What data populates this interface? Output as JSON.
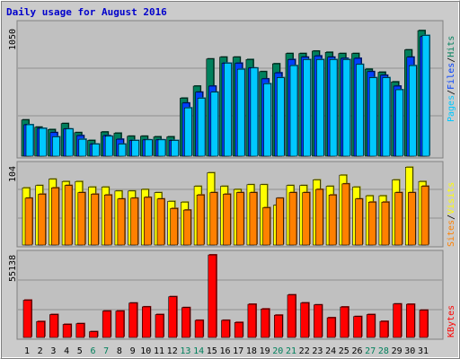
{
  "title": "Daily usage for August 2016",
  "colors": {
    "background": "#cbcbcb",
    "frame": "#ffffff",
    "plot": "#c0c0c0",
    "title": "#0000cc",
    "hits": "#00805c",
    "files": "#0040ff",
    "pages": "#00c8ff",
    "visits": "#ffff00",
    "sites": "#ff8000",
    "kbytes": "#ff0000",
    "weekend": "#00805c",
    "weekday": "#000000"
  },
  "legend": {
    "pages": "Pages",
    "files": "Files",
    "hits": "Hits",
    "sep": "/",
    "sites": "Sites",
    "visits": "Visits",
    "kbytes": "KBytes"
  },
  "chart_data": [
    {
      "type": "bar",
      "panel": "hits-files-pages",
      "y_max_label": "1050",
      "ylim": [
        0,
        1130
      ],
      "categories": [
        "1",
        "2",
        "3",
        "4",
        "5",
        "6",
        "7",
        "8",
        "9",
        "10",
        "11",
        "12",
        "13",
        "14",
        "15",
        "16",
        "17",
        "18",
        "19",
        "20",
        "21",
        "22",
        "23",
        "24",
        "25",
        "26",
        "27",
        "28",
        "29",
        "30",
        "31"
      ],
      "series": [
        {
          "name": "Hits",
          "values": [
            300,
            240,
            220,
            270,
            195,
            130,
            200,
            190,
            165,
            165,
            160,
            160,
            480,
            580,
            805,
            820,
            820,
            800,
            700,
            765,
            850,
            850,
            870,
            860,
            850,
            850,
            720,
            695,
            615,
            880,
            1040
          ]
        },
        {
          "name": "Files",
          "values": [
            260,
            230,
            195,
            225,
            170,
            100,
            170,
            140,
            130,
            135,
            135,
            130,
            440,
            530,
            580,
            770,
            770,
            730,
            640,
            690,
            800,
            820,
            830,
            820,
            810,
            810,
            700,
            670,
            580,
            820,
            990
          ]
        },
        {
          "name": "Pages",
          "values": [
            260,
            230,
            160,
            225,
            140,
            100,
            165,
            100,
            130,
            135,
            135,
            130,
            400,
            480,
            530,
            770,
            720,
            730,
            600,
            650,
            750,
            800,
            800,
            800,
            800,
            760,
            650,
            650,
            550,
            750,
            1000
          ]
        }
      ]
    },
    {
      "type": "bar",
      "panel": "visits-sites",
      "y_max_label": "104",
      "ylim": [
        0,
        104
      ],
      "categories": [
        "1",
        "2",
        "3",
        "4",
        "5",
        "6",
        "7",
        "8",
        "9",
        "10",
        "11",
        "12",
        "13",
        "14",
        "15",
        "16",
        "17",
        "18",
        "19",
        "20",
        "21",
        "22",
        "23",
        "24",
        "25",
        "26",
        "27",
        "28",
        "29",
        "30",
        "31"
      ],
      "series": [
        {
          "name": "Visits",
          "values": [
            72,
            75,
            83,
            80,
            80,
            73,
            73,
            68,
            68,
            70,
            66,
            55,
            54,
            74,
            91,
            74,
            70,
            76,
            76,
            50,
            75,
            75,
            82,
            74,
            88,
            73,
            62,
            62,
            82,
            98,
            80
          ]
        },
        {
          "name": "Sites",
          "values": [
            59,
            64,
            72,
            75,
            66,
            64,
            63,
            58,
            59,
            60,
            58,
            46,
            44,
            63,
            66,
            64,
            66,
            66,
            47,
            59,
            66,
            66,
            70,
            63,
            77,
            58,
            54,
            54,
            66,
            66,
            74
          ]
        }
      ]
    },
    {
      "type": "bar",
      "panel": "kbytes",
      "y_max_label": "55138",
      "ylim": [
        0,
        55138
      ],
      "categories": [
        "1",
        "2",
        "3",
        "4",
        "5",
        "6",
        "7",
        "8",
        "9",
        "10",
        "11",
        "12",
        "13",
        "14",
        "15",
        "16",
        "17",
        "18",
        "19",
        "20",
        "21",
        "22",
        "23",
        "24",
        "25",
        "26",
        "27",
        "28",
        "29",
        "30",
        "31"
      ],
      "series": [
        {
          "name": "KBytes",
          "values": [
            24600,
            10500,
            15100,
            8600,
            9100,
            3800,
            17400,
            17400,
            22700,
            20200,
            15100,
            26900,
            19700,
            11300,
            54500,
            11300,
            9900,
            21900,
            18800,
            14700,
            28100,
            22800,
            21500,
            13000,
            20100,
            13800,
            15100,
            10600,
            22100,
            21900,
            18000
          ]
        }
      ]
    }
  ]
}
